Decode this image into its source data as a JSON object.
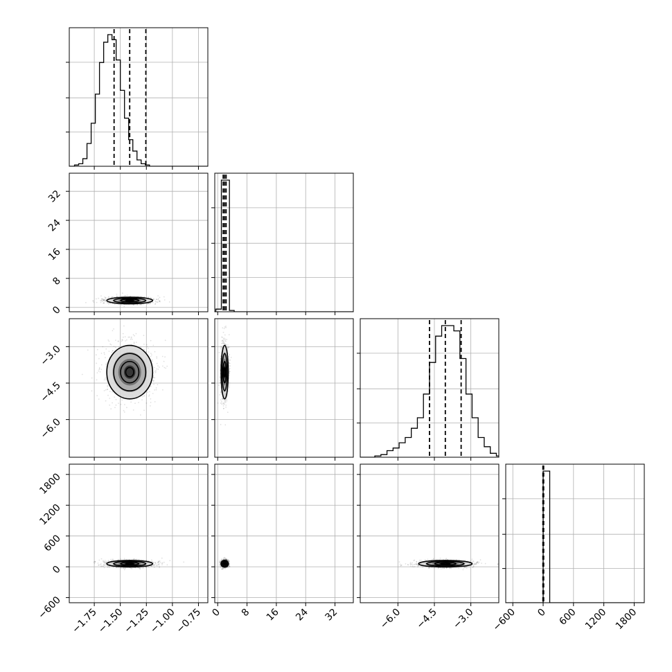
{
  "chart_data": {
    "type": "corner",
    "grid": true,
    "parameters": [
      {
        "ticks": [
          -1.75,
          -1.5,
          -1.25,
          -1.0,
          -0.75
        ],
        "tick_labels": [
          "−1.75",
          "−1.50",
          "−1.25",
          "−1.00",
          "−0.75"
        ]
      },
      {
        "ticks": [
          0,
          8,
          16,
          24,
          32
        ],
        "tick_labels": [
          "0",
          "8",
          "16",
          "24",
          "32"
        ]
      },
      {
        "ticks": [
          -6.0,
          -4.5,
          -3.0
        ],
        "tick_labels": [
          "−6.0",
          "−4.5",
          "−3.0"
        ]
      },
      {
        "ticks": [
          -600,
          0,
          600,
          1200,
          1800
        ],
        "tick_labels": [
          "−600",
          "0",
          "600",
          "1200",
          "1800"
        ]
      }
    ],
    "marginals": [
      {
        "param": 0,
        "quantiles": [
          -1.56,
          -1.41,
          -1.255
        ],
        "bins": [
          -1.98,
          -1.94,
          -1.9,
          -1.86,
          -1.82,
          -1.78,
          -1.74,
          -1.7,
          -1.66,
          -1.62,
          -1.58,
          -1.54,
          -1.5,
          -1.46,
          -1.42,
          -1.38,
          -1.34,
          -1.3,
          -1.26,
          -1.22,
          -1.18,
          -1.14,
          -1.1,
          -1.06,
          -1.02,
          -0.98,
          -0.94,
          -0.9,
          -0.86
        ],
        "counts": [
          0,
          1,
          2,
          6,
          18,
          34,
          57,
          82,
          98,
          104,
          100,
          84,
          60,
          38,
          21,
          12,
          5,
          2,
          1,
          0,
          0,
          0,
          0,
          0,
          0,
          0,
          0,
          0
        ],
        "bin_start": -1.98,
        "bin_width": 0.04
      },
      {
        "param": 1,
        "quantiles": [
          1.5,
          1.9,
          2.3
        ],
        "counts": [
          2,
          100,
          1,
          0
        ],
        "bin_edges": [
          -0.5,
          1.0,
          3.2,
          4.5,
          6.0
        ]
      },
      {
        "param": 2,
        "quantiles": [
          -4.7,
          -4.05,
          -3.4
        ],
        "counts": [
          0,
          1,
          2,
          5,
          7,
          11,
          15,
          22,
          30,
          48,
          72,
          92,
          100,
          100,
          96,
          75,
          48,
          30,
          15,
          8,
          3,
          1
        ],
        "bin_start": -7.2,
        "bin_width": 0.25
      },
      {
        "param": 3,
        "quantiles": [
          -5,
          2,
          10
        ],
        "counts": [
          100,
          0
        ],
        "bin_edges": [
          0,
          130,
          1900
        ]
      }
    ],
    "joints": [
      {
        "x": 0,
        "y": 1,
        "center": [
          -1.41,
          1.9
        ],
        "spread": [
          0.11,
          0.3
        ]
      },
      {
        "x": 0,
        "y": 2,
        "center": [
          -1.41,
          -4.05
        ],
        "spread": [
          0.11,
          0.55
        ]
      },
      {
        "x": 1,
        "y": 2,
        "center": [
          1.9,
          -4.05
        ],
        "spread": [
          0.3,
          0.55
        ]
      },
      {
        "x": 0,
        "y": 3,
        "center": [
          -1.41,
          60
        ],
        "spread": [
          0.11,
          20
        ]
      },
      {
        "x": 1,
        "y": 3,
        "center": [
          1.9,
          60
        ],
        "spread": [
          0.3,
          20
        ]
      },
      {
        "x": 2,
        "y": 3,
        "center": [
          -4.05,
          60
        ],
        "spread": [
          0.55,
          20
        ]
      }
    ]
  }
}
